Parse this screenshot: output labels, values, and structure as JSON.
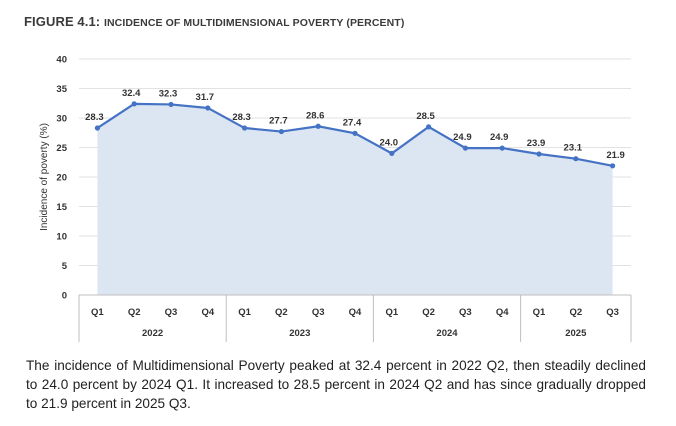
{
  "figure": {
    "label": "FIGURE 4.1:",
    "title": "INCIDENCE OF MULTIDIMENSIONAL POVERTY (PERCENT)"
  },
  "colors": {
    "line": "#4472C4",
    "area": "#DCE6F2",
    "grid": "#D9D9D9",
    "text": "#333333"
  },
  "chart_data": {
    "type": "area",
    "title": "FIGURE 4.1: INCIDENCE OF MULTIDIMENSIONAL POVERTY (PERCENT)",
    "xlabel": "",
    "ylabel": "Incidence of poverty (%)",
    "ylim": [
      0,
      40
    ],
    "yticks": [
      0,
      5,
      10,
      15,
      20,
      25,
      30,
      35,
      40
    ],
    "grid": true,
    "legend": "none",
    "categories": [
      "Q1",
      "Q2",
      "Q3",
      "Q4",
      "Q1",
      "Q2",
      "Q3",
      "Q4",
      "Q1",
      "Q2",
      "Q3",
      "Q4",
      "Q1",
      "Q2",
      "Q3"
    ],
    "groups": [
      {
        "label": "2022",
        "count": 4
      },
      {
        "label": "2023",
        "count": 4
      },
      {
        "label": "2024",
        "count": 4
      },
      {
        "label": "2025",
        "count": 3
      }
    ],
    "values": [
      28.3,
      32.4,
      32.3,
      31.7,
      28.3,
      27.7,
      28.6,
      27.4,
      24.0,
      28.5,
      24.9,
      24.9,
      23.9,
      23.1,
      21.9
    ],
    "data_labels": [
      "28.3",
      "32.4",
      "32.3",
      "31.7",
      "28.3",
      "27.7",
      "28.6",
      "27.4",
      "24.0",
      "28.5",
      "24.9",
      "24.9",
      "23.9",
      "23.1",
      "21.9"
    ]
  },
  "caption": "The incidence of Multidimensional Poverty peaked at 32.4 percent in 2022 Q2, then steadily declined to 24.0 percent by 2024 Q1. It increased to 28.5 percent in 2024 Q2 and has since gradually dropped to 21.9 percent in 2025 Q3."
}
